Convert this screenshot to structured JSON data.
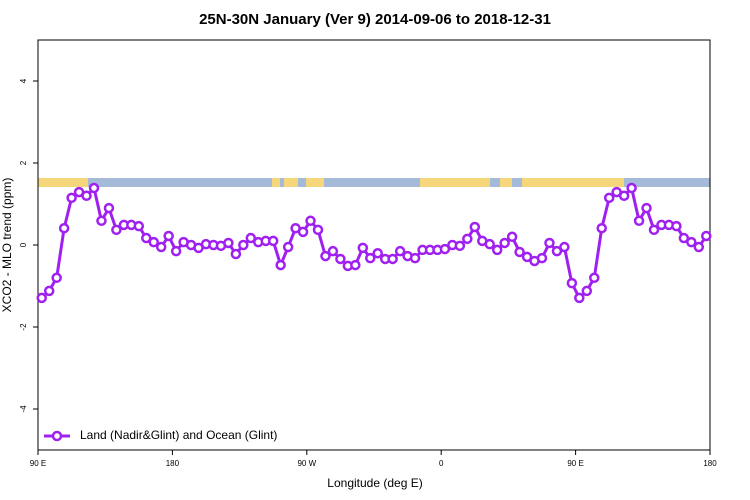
{
  "chart_data": {
    "type": "line",
    "title": "25N-30N January (Ver 9)   2014-09-06 to 2018-12-31",
    "xlabel": "Longitude (deg E)",
    "ylabel": "XCO2 - MLO trend (ppm)",
    "xlim": [
      90,
      540
    ],
    "xticks": [
      {
        "value": 90,
        "label": "90 E"
      },
      180,
      {
        "value": 270,
        "label": "90 W"
      },
      {
        "value": 360,
        "label": "0"
      },
      {
        "value": 450,
        "label": "90 E"
      },
      {
        "value": 540,
        "label": "180"
      }
    ],
    "ylim": [
      -5,
      5
    ],
    "yticks": [
      -4,
      -2,
      0,
      2,
      4
    ],
    "legend": "bottom-left",
    "x": [
      92.5,
      97.5,
      102.5,
      107.5,
      112.5,
      117.5,
      122.5,
      127.5,
      132.5,
      137.5,
      142.5,
      147.5,
      152.5,
      157.5,
      162.5,
      167.5,
      172.5,
      177.5,
      182.5,
      187.5,
      192.5,
      197.5,
      202.5,
      207.5,
      212.5,
      217.5,
      222.5,
      227.5,
      232.5,
      237.5,
      242.5,
      247.5,
      252.5,
      257.5,
      262.5,
      267.5,
      272.5,
      277.5,
      282.5,
      287.5,
      292.5,
      297.5,
      302.5,
      307.5,
      312.5,
      317.5,
      322.5,
      327.5,
      332.5,
      337.5,
      342.5,
      347.5,
      352.5,
      357.5,
      362.5,
      367.5,
      372.5,
      377.5,
      382.5,
      387.5,
      392.5,
      397.5,
      402.5,
      407.5,
      412.5,
      417.5,
      422.5,
      427.5,
      432.5,
      437.5,
      442.5,
      447.5,
      452.5,
      457.5,
      462.5,
      467.5,
      472.5,
      477.5,
      482.5,
      487.5,
      492.5,
      497.5,
      502.5,
      507.5,
      512.5,
      517.5,
      522.5,
      527.5,
      532.5,
      537.5
    ],
    "series": [
      {
        "name": "Land (Nadir&Glint) and Ocean (Glint)",
        "color": "#a020f0",
        "values": [
          -1.29,
          -1.12,
          -0.8,
          0.41,
          1.15,
          1.29,
          1.2,
          1.39,
          0.59,
          0.9,
          0.37,
          0.49,
          0.49,
          0.46,
          0.17,
          0.07,
          -0.05,
          0.22,
          -0.15,
          0.07,
          0,
          -0.07,
          0.02,
          0,
          -0.02,
          0.05,
          -0.22,
          0,
          0.17,
          0.07,
          0.1,
          0.1,
          -0.49,
          -0.05,
          0.41,
          0.32,
          0.59,
          0.37,
          -0.27,
          -0.15,
          -0.34,
          -0.51,
          -0.49,
          -0.07,
          -0.32,
          -0.2,
          -0.34,
          -0.34,
          -0.15,
          -0.27,
          -0.32,
          -0.12,
          -0.12,
          -0.12,
          -0.1,
          0,
          -0.02,
          0.15,
          0.44,
          0.1,
          0.02,
          -0.12,
          0.05,
          0.2,
          -0.17,
          -0.29,
          -0.39,
          -0.32,
          0.05,
          -0.15,
          -0.05,
          -0.93,
          -1.29,
          -1.12,
          -0.8,
          0.41,
          1.15,
          1.29,
          1.2,
          1.39,
          0.59,
          0.9,
          0.37,
          0.49,
          0.49,
          0.46,
          0.17,
          0.07,
          -0.05,
          0.22
        ]
      }
    ]
  }
}
